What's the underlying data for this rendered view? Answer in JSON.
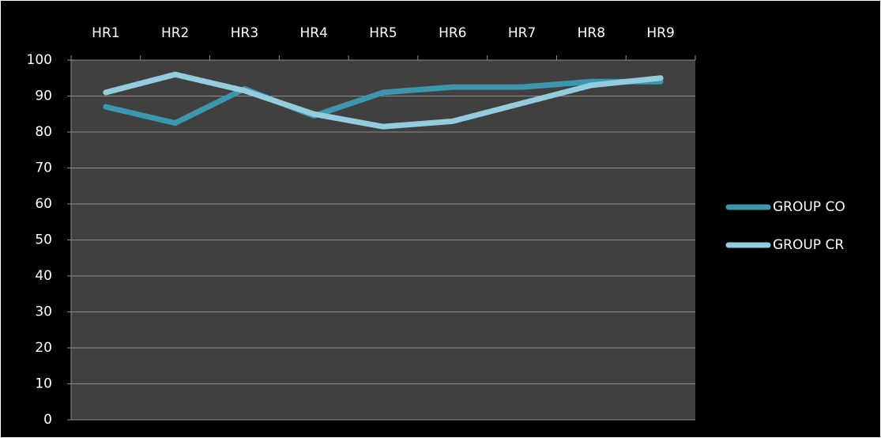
{
  "chart_data": {
    "type": "line",
    "categories": [
      "HR1",
      "HR2",
      "HR3",
      "HR4",
      "HR5",
      "HR6",
      "HR7",
      "HR8",
      "HR9"
    ],
    "series": [
      {
        "name": "GROUP CO",
        "color": "#3b96ae",
        "values": [
          87,
          82.5,
          92,
          84.5,
          91,
          92.5,
          92.5,
          94,
          94
        ]
      },
      {
        "name": "GROUP CR",
        "color": "#93cddd",
        "values": [
          91,
          96,
          91.5,
          85,
          81.5,
          83,
          88,
          93,
          95
        ]
      }
    ],
    "ylim": [
      0,
      100
    ],
    "yticks": [
      0,
      10,
      20,
      30,
      40,
      50,
      60,
      70,
      80,
      90,
      100
    ],
    "grid": true,
    "legend": "right"
  }
}
